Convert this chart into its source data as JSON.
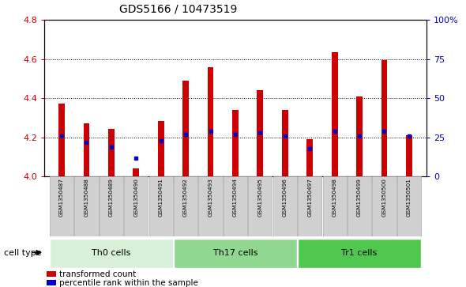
{
  "title": "GDS5166 / 10473519",
  "samples": [
    "GSM1350487",
    "GSM1350488",
    "GSM1350489",
    "GSM1350490",
    "GSM1350491",
    "GSM1350492",
    "GSM1350493",
    "GSM1350494",
    "GSM1350495",
    "GSM1350496",
    "GSM1350497",
    "GSM1350498",
    "GSM1350499",
    "GSM1350500",
    "GSM1350501"
  ],
  "transformed_count": [
    4.375,
    4.27,
    4.245,
    4.04,
    4.285,
    4.49,
    4.56,
    4.34,
    4.44,
    4.34,
    4.19,
    4.635,
    4.41,
    4.595,
    4.21
  ],
  "percentile_rank": [
    26,
    22,
    19,
    12,
    23,
    27,
    29,
    27,
    28,
    26,
    18,
    29,
    26,
    29,
    26
  ],
  "ylim_left": [
    4.0,
    4.8
  ],
  "ylim_right": [
    0,
    100
  ],
  "yticks_left": [
    4.0,
    4.2,
    4.4,
    4.6,
    4.8
  ],
  "yticks_right": [
    0,
    25,
    50,
    75,
    100
  ],
  "ytick_labels_right": [
    "0",
    "25",
    "50",
    "75",
    "100%"
  ],
  "cell_type_groups": [
    {
      "label": "Th0 cells",
      "start": 0,
      "end": 5,
      "color": "#d8f0d8"
    },
    {
      "label": "Th17 cells",
      "start": 5,
      "end": 10,
      "color": "#90d890"
    },
    {
      "label": "Tr1 cells",
      "start": 10,
      "end": 15,
      "color": "#50c850"
    }
  ],
  "bar_color": "#cc0000",
  "marker_color": "#0000cc",
  "bar_width": 0.25,
  "axis_label_color_left": "#cc0000",
  "axis_label_color_right": "#0000cc",
  "legend_red_label": "transformed count",
  "legend_blue_label": "percentile rank within the sample",
  "cell_type_label": "cell type",
  "hgrid_yticks": [
    4.2,
    4.4,
    4.6
  ],
  "label_box_color": "#cccccc",
  "label_box_edge": "#888888"
}
